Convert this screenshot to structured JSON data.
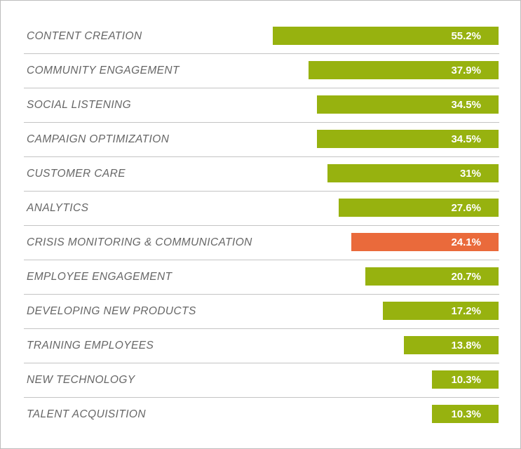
{
  "chart_data": {
    "type": "bar",
    "orientation": "horizontal",
    "categories": [
      "CONTENT CREATION",
      "COMMUNITY ENGAGEMENT",
      "SOCIAL LISTENING",
      "CAMPAIGN OPTIMIZATION",
      "CUSTOMER CARE",
      "ANALYTICS",
      "CRISIS MONITORING & COMMUNICATION",
      "EMPLOYEE ENGAGEMENT",
      "DEVELOPING NEW PRODUCTS",
      "TRAINING EMPLOYEES",
      "NEW TECHNOLOGY",
      "TALENT ACQUISITION"
    ],
    "values": [
      55.2,
      37.9,
      34.5,
      34.5,
      31,
      27.6,
      24.1,
      20.7,
      17.2,
      13.8,
      10.3,
      10.3
    ],
    "value_labels": [
      "55.2%",
      "37.9%",
      "34.5%",
      "34.5%",
      "31%",
      "27.6%",
      "24.1%",
      "20.7%",
      "17.2%",
      "13.8%",
      "10.3%",
      "10.3%"
    ],
    "colors": {
      "default": "#97b20f",
      "highlight": "#ea6a3b"
    },
    "highlighted_category": "CRISIS MONITORING & COMMUNICATION",
    "grid": false,
    "legend": "none"
  }
}
